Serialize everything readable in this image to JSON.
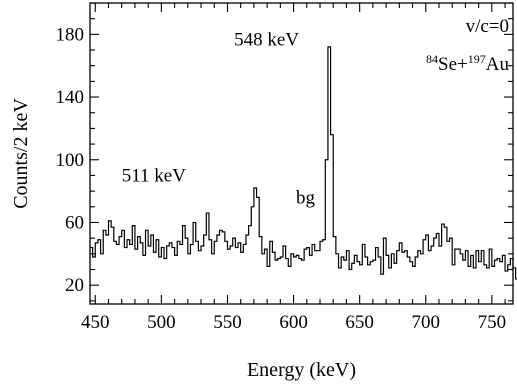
{
  "chart_data": {
    "type": "line",
    "title": "",
    "xlabel": "Energy (keV)",
    "ylabel": "Counts/2 keV",
    "xlim": [
      446,
      766
    ],
    "ylim": [
      8,
      200
    ],
    "xticks": [
      450,
      500,
      550,
      600,
      650,
      700,
      750
    ],
    "xtick_labels": [
      "450",
      "500",
      "550",
      "600",
      "650",
      "700",
      "750"
    ],
    "yticks": [
      20,
      60,
      100,
      140,
      180
    ],
    "ytick_labels": [
      "20",
      "60",
      "100",
      "140",
      "180"
    ],
    "grid": false,
    "legend": {
      "position": "top-right",
      "line1": "v/c=0",
      "line2": {
        "a": "84",
        "b": "Se",
        "c": "+",
        "d": "197",
        "e": "Au"
      }
    },
    "annotations": [
      {
        "text": "548 keV",
        "x": 548
      },
      {
        "text": "511 keV",
        "x": 511
      },
      {
        "text": "bg",
        "x": 609
      }
    ],
    "series": [
      {
        "bin_width": 2,
        "x_start": 446,
        "values": [
          44,
          38,
          47,
          49,
          40,
          55,
          52,
          61,
          57,
          48,
          46,
          51,
          55,
          44,
          49,
          46,
          58,
          43,
          51,
          47,
          39,
          55,
          45,
          52,
          41,
          49,
          38,
          44,
          37,
          45,
          47,
          44,
          39,
          48,
          46,
          58,
          50,
          40,
          46,
          60,
          48,
          42,
          45,
          52,
          66,
          49,
          40,
          48,
          52,
          55,
          54,
          48,
          43,
          45,
          50,
          44,
          47,
          41,
          46,
          52,
          58,
          70,
          82,
          76,
          51,
          40,
          43,
          32,
          48,
          41,
          36,
          37,
          38,
          45,
          37,
          32,
          40,
          38,
          39,
          37,
          36,
          43,
          44,
          39,
          46,
          42,
          42,
          48,
          49,
          100,
          172,
          116,
          51,
          40,
          31,
          38,
          36,
          42,
          30,
          34,
          39,
          35,
          33,
          46,
          38,
          33,
          35,
          36,
          44,
          38,
          27,
          50,
          39,
          31,
          40,
          34,
          42,
          47,
          41,
          42,
          38,
          35,
          32,
          38,
          42,
          40,
          49,
          52,
          42,
          45,
          50,
          53,
          45,
          59,
          57,
          48,
          50,
          33,
          43,
          43,
          40,
          36,
          42,
          32,
          39,
          31,
          42,
          35,
          42,
          33,
          31,
          43,
          32,
          36,
          37,
          35,
          39,
          29,
          33,
          37,
          31,
          24,
          33,
          24,
          35,
          26,
          31,
          36,
          26,
          29,
          25,
          33,
          37,
          30,
          25,
          26,
          28,
          31,
          23,
          27,
          32,
          24,
          28,
          30,
          28,
          27,
          28,
          33,
          27,
          32,
          25,
          28,
          25,
          34,
          26,
          31,
          28,
          24,
          28,
          31,
          26,
          26,
          23,
          27,
          19,
          28,
          21,
          34,
          22,
          19,
          25,
          20,
          27,
          23,
          24,
          28,
          29,
          31,
          20,
          29,
          26,
          29,
          22,
          30,
          24,
          27,
          22,
          29,
          27,
          29,
          36,
          25,
          25,
          22,
          33,
          24,
          28,
          23,
          25,
          36,
          29,
          23,
          19,
          20,
          26,
          32,
          24,
          30,
          26,
          30,
          33,
          24,
          22,
          28,
          31,
          24,
          34,
          21,
          33,
          20,
          24,
          21,
          26,
          36,
          34,
          30,
          31,
          25,
          21,
          25,
          27,
          19,
          24,
          32,
          28,
          27,
          21,
          28,
          22,
          23,
          19,
          36,
          20,
          29,
          26,
          22,
          22,
          27,
          25,
          20,
          31,
          34,
          27,
          24,
          23,
          21,
          20,
          22,
          27,
          30,
          22,
          27,
          25,
          22,
          25,
          27,
          23,
          19,
          23,
          25,
          23,
          28,
          30,
          27,
          23,
          21,
          26,
          29,
          21,
          22,
          30,
          22,
          27,
          26
        ]
      }
    ]
  }
}
